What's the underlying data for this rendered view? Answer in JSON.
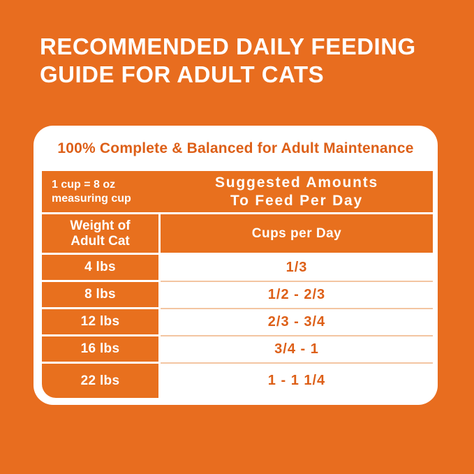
{
  "colors": {
    "background": "#E86D1F",
    "table_orange": "#E8701E",
    "text_orange": "#DD5F17",
    "separator_light": "#F3C5A1",
    "white": "#FFFFFF"
  },
  "title": {
    "line1": "RECOMMENDED DAILY FEEDING",
    "line2": "GUIDE FOR ADULT CATS"
  },
  "card": {
    "subtitle": "100% Complete & Balanced for Adult Maintenance",
    "table": {
      "note": {
        "line1": "1 cup = 8 oz",
        "line2": "measuring cup"
      },
      "header": {
        "line1": "Suggested Amounts",
        "line2": "To Feed Per Day"
      },
      "columns": {
        "weight_line1": "Weight of",
        "weight_line2": "Adult Cat",
        "cups": "Cups per Day"
      },
      "rows": [
        {
          "weight": "4 lbs",
          "cups": "1/3"
        },
        {
          "weight": "8 lbs",
          "cups": "1/2 - 2/3"
        },
        {
          "weight": "12 lbs",
          "cups": "2/3 - 3/4"
        },
        {
          "weight": "16 lbs",
          "cups": "3/4 - 1"
        },
        {
          "weight": "22 lbs",
          "cups": "1 - 1 1/4"
        }
      ]
    }
  }
}
